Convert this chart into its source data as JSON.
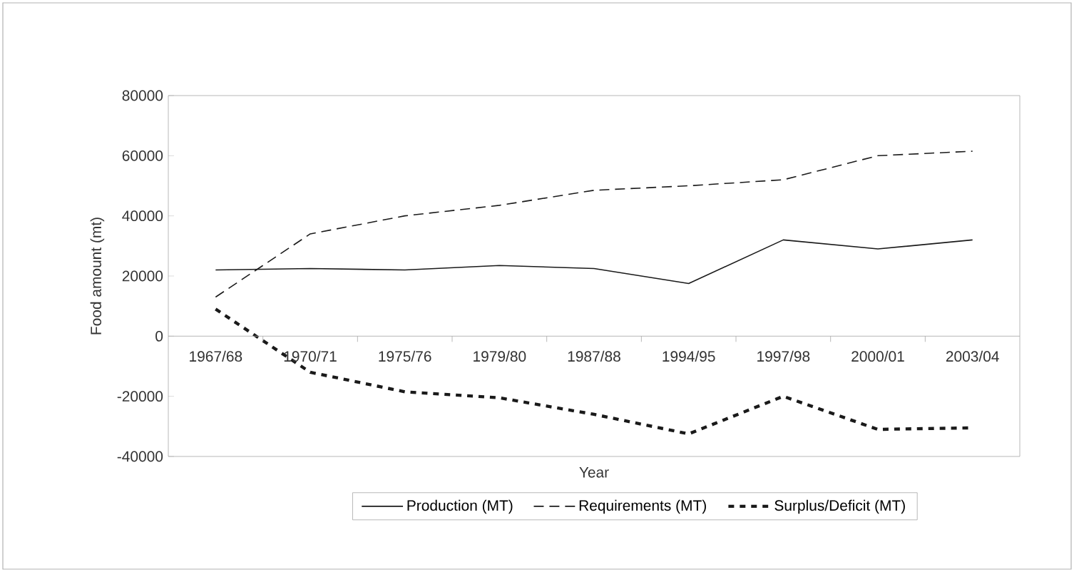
{
  "chart_data": {
    "type": "line",
    "xlabel": "Year",
    "ylabel": "Food amount (mt)",
    "categories": [
      "1967/68",
      "1970/71",
      "1975/76",
      "1979/80",
      "1987/88",
      "1994/95",
      "1997/98",
      "2000/01",
      "2003/04"
    ],
    "ylim": [
      -40000,
      80000
    ],
    "yticks": [
      -40000,
      -20000,
      0,
      20000,
      40000,
      60000,
      80000
    ],
    "legend": "bottom",
    "series": [
      {
        "name": "Production (MT)",
        "color": "#1a1a1a",
        "line_style": "solid",
        "values": [
          22000,
          22500,
          22000,
          23500,
          22500,
          17500,
          32000,
          29000,
          32000
        ]
      },
      {
        "name": "Requirements (MT)",
        "color": "#1a1a1a",
        "line_style": "dashed",
        "values": [
          13000,
          34000,
          40000,
          43500,
          48500,
          50000,
          52000,
          60000,
          61500
        ]
      },
      {
        "name": "Surplus/Deficit (MT)",
        "color": "#1a1a1a",
        "line_style": "dotted",
        "values": [
          9000,
          -12000,
          -18500,
          -20500,
          -26000,
          -32500,
          -20000,
          -31000,
          -30500
        ]
      }
    ]
  }
}
